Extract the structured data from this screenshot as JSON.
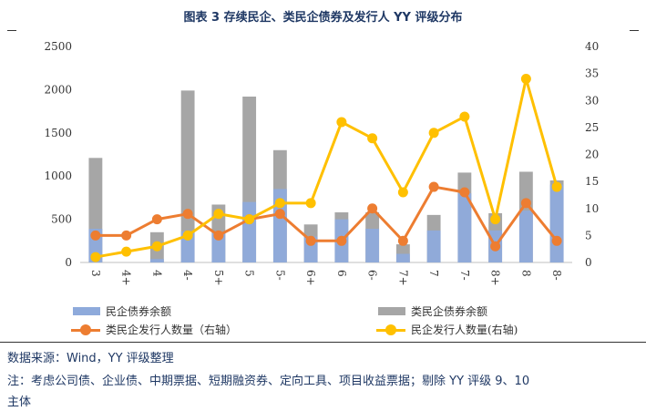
{
  "colors": {
    "title": "#1f3864",
    "footnote": "#1f3864",
    "private_bond_bar": "#8eaadb",
    "quasi_private_bond_bar": "#a6a6a6",
    "quasi_issuer_line": "#ed7d31",
    "private_issuer_line": "#ffc000"
  },
  "header": {
    "title": "图表 3 存续民企、类民企债券及发行人 YY 评级分布"
  },
  "chart_data": {
    "type": "bar",
    "categories": [
      "3",
      "4+",
      "4",
      "4-",
      "5+",
      "5",
      "5-",
      "6+",
      "6",
      "6-",
      "7+",
      "7",
      "7-",
      "8+",
      "8",
      "8-"
    ],
    "y_left_ticks": [
      "0",
      "500",
      "1000",
      "1500",
      "2000",
      "2500"
    ],
    "y_right_ticks": [
      "0",
      "5",
      "10",
      "15",
      "20",
      "25",
      "30",
      "35",
      "40"
    ],
    "ylim_left": [
      0,
      2500
    ],
    "ylim_right": [
      0,
      40
    ],
    "series": [
      {
        "name": "民企债券余额",
        "type": "bar",
        "axis": "left",
        "values": [
          390,
          0,
          40,
          360,
          350,
          700,
          850,
          300,
          500,
          390,
          100,
          370,
          800,
          370,
          600,
          900
        ]
      },
      {
        "name": "类民企债券余额",
        "type": "bar",
        "axis": "left",
        "values": [
          1210,
          0,
          350,
          1990,
          670,
          1920,
          1300,
          440,
          580,
          580,
          210,
          550,
          1040,
          570,
          1050,
          950
        ]
      },
      {
        "name": "类民企发行人数量（右轴）",
        "type": "line",
        "axis": "right",
        "values": [
          5,
          5,
          8,
          9,
          5,
          8,
          9,
          4,
          4,
          10,
          4,
          14,
          13,
          3,
          11,
          4
        ]
      },
      {
        "name": "民企发行人数量(右轴)",
        "type": "line",
        "axis": "right",
        "values": [
          1,
          2,
          3,
          5,
          9,
          8,
          11,
          11,
          26,
          23,
          13,
          24,
          27,
          8,
          34,
          14
        ]
      }
    ],
    "legend_position": "bottom",
    "grid": false
  },
  "footnotes": {
    "source": "数据来源：Wind，YY 评级整理",
    "note_line1": "注：考虑公司债、企业债、中期票据、短期融资券、定向工具、项目收益票据；剔除 YY 评级 9、10",
    "note_line2": "主体"
  }
}
